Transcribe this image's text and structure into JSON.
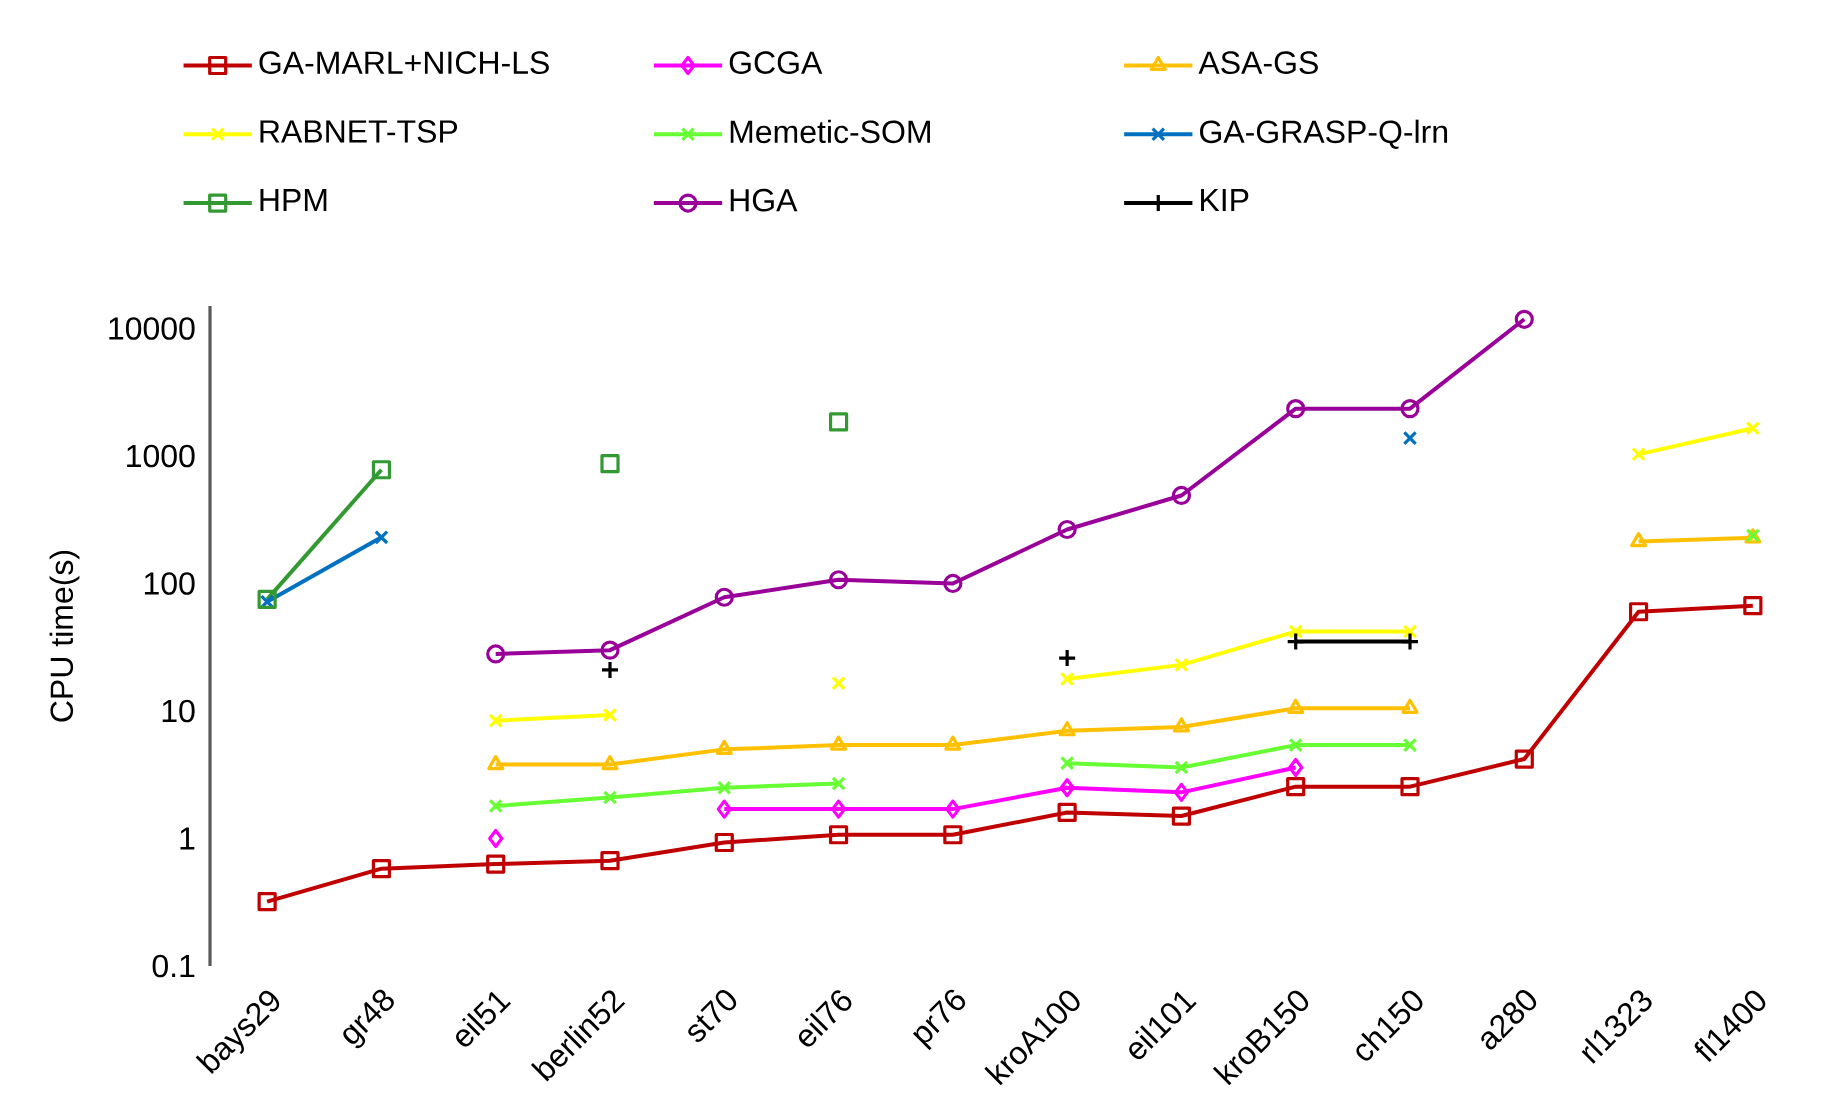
{
  "chart_data": {
    "type": "line",
    "ylabel": "CPU time(s)",
    "log": true,
    "legend": "top",
    "categories": [
      "bays29",
      "gr48",
      "eil51",
      "berlin52",
      "st70",
      "eil76",
      "pr76",
      "kroA100",
      "eil101",
      "kroB150",
      "ch150",
      "a280",
      "rl1323",
      "fl1400"
    ],
    "ylim": [
      0.1,
      15000
    ],
    "yticks": [
      0.1,
      1,
      10,
      100,
      1000,
      10000
    ],
    "series": [
      {
        "name": "GA-MARL+NICH-LS",
        "color": "#c00000",
        "marker": "square",
        "values": [
          0.32,
          0.58,
          0.63,
          0.67,
          0.93,
          1.07,
          1.07,
          1.6,
          1.5,
          2.55,
          2.55,
          4.2,
          60,
          67
        ]
      },
      {
        "name": "GCGA",
        "color": "#ff00ff",
        "marker": "diamond",
        "values": [
          null,
          null,
          1.0,
          null,
          1.7,
          1.7,
          1.7,
          2.5,
          2.3,
          3.6,
          null,
          null,
          null,
          null
        ]
      },
      {
        "name": "ASA-GS",
        "color": "#ffc000",
        "marker": "triangle",
        "values": [
          null,
          null,
          3.8,
          3.8,
          5.0,
          5.4,
          5.4,
          7,
          7.5,
          10.5,
          10.5,
          null,
          213,
          228
        ]
      },
      {
        "name": "RABNET-TSP",
        "color": "#ffff00",
        "marker": "cross",
        "values": [
          null,
          null,
          8.4,
          9.3,
          null,
          16.5,
          null,
          17.8,
          23,
          42,
          42,
          null,
          1030,
          1650
        ]
      },
      {
        "name": "Memetic-SOM",
        "color": "#66ff33",
        "marker": "cross",
        "values": [
          null,
          null,
          1.8,
          2.1,
          2.5,
          2.7,
          null,
          3.9,
          3.6,
          5.4,
          5.4,
          null,
          null,
          238
        ]
      },
      {
        "name": "GA-GRASP-Q-lrn",
        "color": "#0070c0",
        "marker": "cross",
        "values": [
          72,
          230,
          null,
          null,
          null,
          null,
          null,
          null,
          null,
          null,
          1380,
          null,
          null,
          null
        ]
      },
      {
        "name": "HPM",
        "color": "#339933",
        "marker": "square",
        "values": [
          75,
          780,
          null,
          870,
          null,
          1850,
          null,
          null,
          null,
          null,
          null,
          null,
          null,
          null
        ]
      },
      {
        "name": "HGA",
        "color": "#990099",
        "marker": "circle",
        "values": [
          null,
          null,
          28,
          30,
          78,
          107,
          100,
          265,
          490,
          2350,
          2350,
          11800,
          null,
          null
        ]
      },
      {
        "name": "KIP",
        "color": "#000000",
        "marker": "plus",
        "values": [
          null,
          null,
          null,
          21,
          null,
          null,
          null,
          26,
          null,
          35,
          35,
          null,
          null,
          null
        ]
      }
    ]
  }
}
